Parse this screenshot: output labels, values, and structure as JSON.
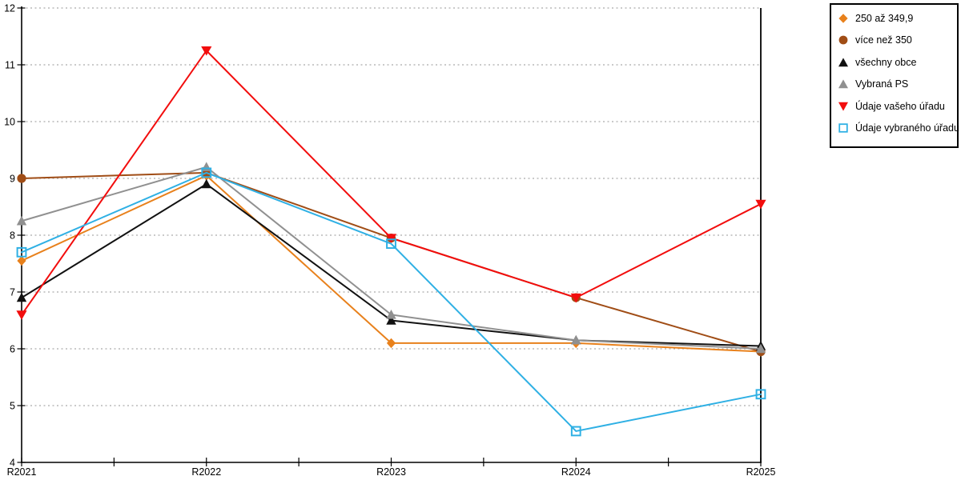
{
  "chart_data": {
    "type": "line",
    "title": "",
    "xlabel": "",
    "ylabel": "",
    "categories": [
      "R2021",
      "R2022",
      "R2023",
      "R2024",
      "R2025"
    ],
    "yticks": [
      "4",
      "5",
      "6",
      "7",
      "8",
      "9",
      "10",
      "11",
      "12"
    ],
    "ylim": [
      4,
      12
    ],
    "grid": "horizontal-dotted",
    "grid_color": "#ABABAB",
    "axis_color": "#000000",
    "background_color": "#FFFFFF",
    "legend_position": "top-right",
    "series": [
      {
        "name": "250 až 349,9",
        "marker": "diamond",
        "color": "#E8811C",
        "values": [
          7.55,
          9.05,
          6.1,
          6.1,
          5.95
        ]
      },
      {
        "name": "více než 350",
        "marker": "circle",
        "color": "#A04D16",
        "values": [
          9.0,
          9.1,
          7.95,
          6.9,
          5.95
        ]
      },
      {
        "name": "všechny obce",
        "marker": "triangle-up",
        "color": "#111111",
        "values": [
          6.9,
          8.9,
          6.5,
          6.15,
          6.05
        ]
      },
      {
        "name": "Vybraná PS",
        "marker": "triangle-up",
        "color": "#909090",
        "values": [
          8.25,
          9.2,
          6.6,
          6.15,
          6.0
        ]
      },
      {
        "name": "Údaje vašeho úřadu",
        "marker": "triangle-down",
        "color": "#F20D0D",
        "values": [
          6.6,
          11.25,
          7.95,
          6.9,
          8.55
        ]
      },
      {
        "name": "Údaje vybraného úřadu",
        "marker": "square-open",
        "color": "#2FB0E4",
        "values": [
          7.7,
          9.1,
          7.85,
          4.55,
          5.2
        ]
      }
    ]
  }
}
